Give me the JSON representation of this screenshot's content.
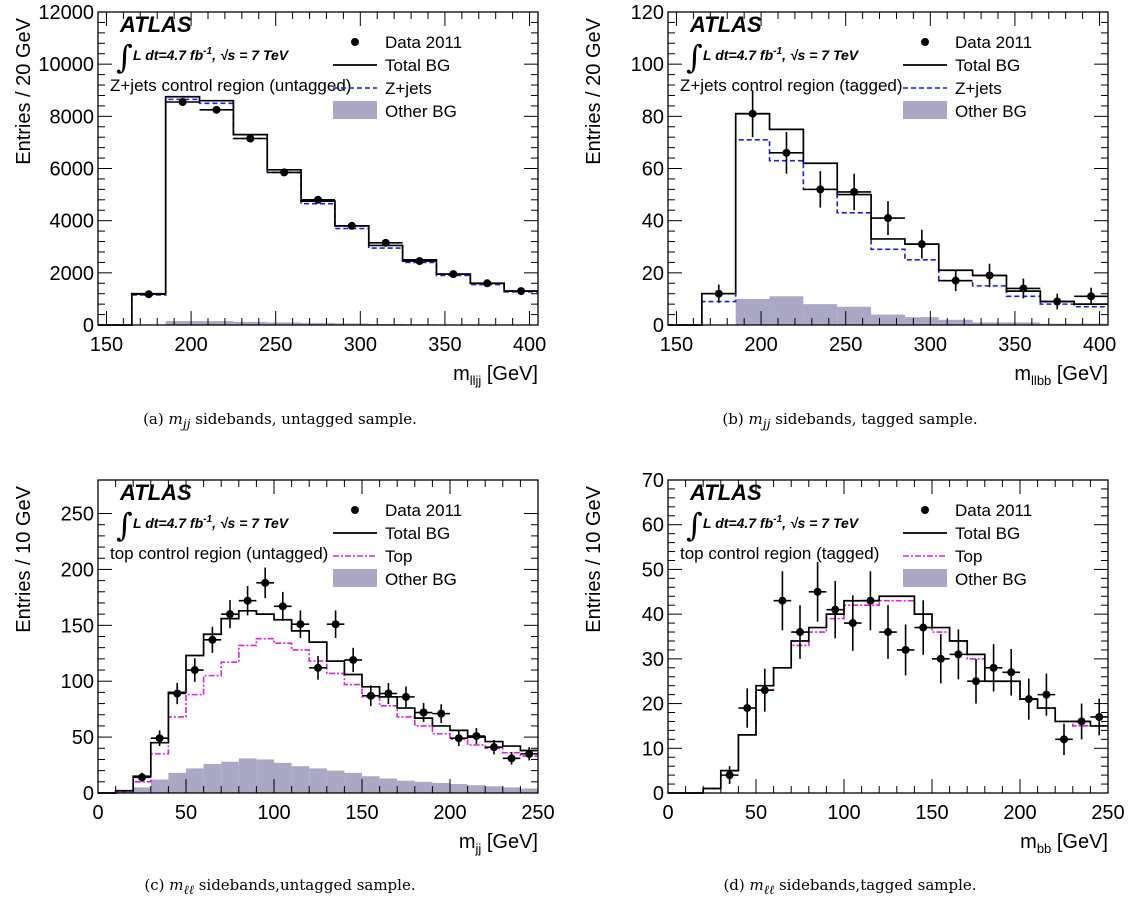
{
  "figure": {
    "panels": [
      {
        "id": "a",
        "caption_prefix": "(a)",
        "caption_var": "m",
        "caption_sub": "jj",
        "caption_text": " sidebands, untagged sample."
      },
      {
        "id": "b",
        "caption_prefix": "(b)",
        "caption_var": "m",
        "caption_sub": "jj",
        "caption_text": " sidebands, tagged sample."
      },
      {
        "id": "c",
        "caption_prefix": "(c)",
        "caption_var": "m",
        "caption_sub": "ℓℓ",
        "caption_text": " sidebands,untagged sample."
      },
      {
        "id": "d",
        "caption_prefix": "(d)",
        "caption_var": "m",
        "caption_sub": "ℓℓ",
        "caption_text": " sidebands,tagged sample."
      }
    ]
  },
  "colors": {
    "data": "#000000",
    "total_bg": "#000000",
    "zjets": "#1a1aee",
    "top": "#e020e0",
    "other_bg": "#aaa8c4"
  },
  "chart_data": [
    {
      "type": "histogram",
      "ylabel": "Entries / 20 GeV",
      "xlabel_main": "m",
      "xlabel_sub": "lljj",
      "xlabel_unit": " [GeV]",
      "xlim": [
        145,
        405
      ],
      "ylim": [
        0,
        12000
      ],
      "xticks": [
        150,
        200,
        250,
        300,
        350,
        400
      ],
      "yticks": [
        0,
        2000,
        4000,
        6000,
        8000,
        10000,
        12000
      ],
      "atlas": "ATLAS",
      "lumi": "L dt=4.7 fb",
      "lumi_sup": "-1",
      "energy": ", √s = 7 TeV",
      "region": "Z+jets control region (untagged)",
      "legend": [
        {
          "key": "data",
          "label": "Data 2011"
        },
        {
          "key": "total",
          "label": "Total BG"
        },
        {
          "key": "zjets",
          "label": "Z+jets"
        },
        {
          "key": "other",
          "label": "Other BG"
        }
      ],
      "bin_edges": [
        145,
        165,
        185,
        205,
        225,
        245,
        265,
        285,
        305,
        325,
        345,
        365,
        385,
        405
      ],
      "total_bg": [
        0,
        1200,
        8750,
        8600,
        7300,
        5950,
        4750,
        3800,
        3050,
        2500,
        1950,
        1600,
        1300
      ],
      "zjets": [
        0,
        1150,
        8650,
        8500,
        7150,
        5850,
        4650,
        3700,
        2950,
        2400,
        1900,
        1550,
        1270
      ],
      "second_bg_label": "Z+jets",
      "other_bg": [
        0,
        0,
        150,
        150,
        120,
        100,
        80,
        60,
        40,
        30,
        20,
        15,
        10
      ],
      "data": {
        "x": [
          175,
          195,
          215,
          235,
          255,
          275,
          295,
          315,
          335,
          355,
          375,
          395
        ],
        "y": [
          1180,
          8550,
          8250,
          7150,
          5850,
          4800,
          3800,
          3150,
          2450,
          1950,
          1600,
          1300
        ],
        "yerr": [
          35,
          90,
          90,
          85,
          75,
          70,
          60,
          55,
          50,
          45,
          40,
          35
        ]
      }
    },
    {
      "type": "histogram",
      "ylabel": "Entries / 20 GeV",
      "xlabel_main": "m",
      "xlabel_sub": "llbb",
      "xlabel_unit": " [GeV]",
      "xlim": [
        145,
        405
      ],
      "ylim": [
        0,
        120
      ],
      "xticks": [
        150,
        200,
        250,
        300,
        350,
        400
      ],
      "yticks": [
        0,
        20,
        40,
        60,
        80,
        100,
        120
      ],
      "atlas": "ATLAS",
      "lumi": "L dt=4.7 fb",
      "lumi_sup": "-1",
      "energy": ", √s = 7 TeV",
      "region": "Z+jets control region (tagged)",
      "legend": [
        {
          "key": "data",
          "label": "Data 2011"
        },
        {
          "key": "total",
          "label": "Total BG"
        },
        {
          "key": "zjets",
          "label": "Z+jets"
        },
        {
          "key": "other",
          "label": "Other BG"
        }
      ],
      "bin_edges": [
        145,
        165,
        185,
        205,
        225,
        245,
        265,
        285,
        305,
        325,
        345,
        365,
        385,
        405
      ],
      "total_bg": [
        0,
        12,
        81,
        75,
        62,
        50,
        33,
        31,
        21,
        19,
        13,
        9,
        8
      ],
      "zjets": [
        0,
        9,
        71,
        63,
        52,
        43,
        29,
        25,
        17,
        15,
        11,
        8,
        7
      ],
      "second_bg_label": "Z+jets",
      "other_bg": [
        0,
        0,
        10,
        11,
        8,
        7,
        4,
        3,
        2,
        1,
        1,
        0.5,
        0.5
      ],
      "data": {
        "x": [
          175,
          195,
          215,
          235,
          255,
          275,
          295,
          315,
          335,
          355,
          375,
          395
        ],
        "y": [
          12,
          81,
          66,
          52,
          51,
          41,
          31,
          17,
          19,
          14,
          9,
          11
        ],
        "yerr": [
          3.5,
          9,
          8,
          7,
          7,
          6.5,
          5.5,
          4,
          4.5,
          3.8,
          3,
          3.3
        ]
      }
    },
    {
      "type": "histogram",
      "ylabel": "Entries / 10 GeV",
      "xlabel_main": "m",
      "xlabel_sub": "jj",
      "xlabel_unit": " [GeV]",
      "xlim": [
        0,
        250
      ],
      "ylim": [
        0,
        280
      ],
      "xticks": [
        0,
        50,
        100,
        150,
        200,
        250
      ],
      "yticks": [
        0,
        50,
        100,
        150,
        200,
        250
      ],
      "atlas": "ATLAS",
      "lumi": "L dt=4.7 fb",
      "lumi_sup": "-1",
      "energy": ", √s = 7 TeV",
      "region": "top control region (untagged)",
      "legend": [
        {
          "key": "data",
          "label": "Data 2011"
        },
        {
          "key": "total",
          "label": "Total BG"
        },
        {
          "key": "top",
          "label": "Top"
        },
        {
          "key": "other",
          "label": "Other BG"
        }
      ],
      "bin_edges": [
        0,
        10,
        20,
        30,
        40,
        50,
        60,
        70,
        80,
        90,
        100,
        110,
        120,
        130,
        140,
        150,
        160,
        170,
        180,
        190,
        200,
        210,
        220,
        230,
        240,
        250
      ],
      "total_bg": [
        0,
        2,
        15,
        45,
        90,
        123,
        142,
        156,
        163,
        160,
        155,
        145,
        135,
        118,
        106,
        95,
        86,
        76,
        67,
        60,
        56,
        50,
        46,
        42,
        38
      ],
      "top": [
        0,
        1,
        10,
        35,
        68,
        88,
        105,
        117,
        132,
        138,
        134,
        128,
        118,
        107,
        97,
        86,
        78,
        68,
        60,
        53,
        48,
        43,
        40,
        36,
        33
      ],
      "second_bg_label": "Top",
      "other_bg": [
        0,
        1,
        5,
        12,
        18,
        22,
        26,
        28,
        31,
        30,
        27,
        24,
        22,
        20,
        18,
        15,
        13,
        11,
        10,
        9,
        8,
        7,
        6,
        5,
        4
      ],
      "data": {
        "x": [
          25,
          35,
          45,
          55,
          65,
          75,
          85,
          95,
          105,
          115,
          125,
          135,
          145,
          155,
          165,
          175,
          185,
          195,
          205,
          215,
          225,
          235,
          245
        ],
        "y": [
          14,
          49,
          89,
          110,
          137,
          160,
          172,
          188,
          167,
          151,
          112,
          151,
          119,
          87,
          89,
          86,
          72,
          71,
          49,
          51,
          41,
          31,
          35
        ],
        "yerr": [
          4,
          7,
          9.5,
          10.5,
          11.7,
          12.6,
          13.1,
          13.7,
          12.9,
          12.3,
          10.6,
          12.3,
          10.9,
          9.3,
          9.4,
          9.3,
          8.5,
          8.4,
          7,
          7.1,
          6.4,
          5.6,
          5.9
        ]
      }
    },
    {
      "type": "histogram",
      "ylabel": "Entries / 10 GeV",
      "xlabel_main": "m",
      "xlabel_sub": "bb",
      "xlabel_unit": " [GeV]",
      "xlim": [
        0,
        250
      ],
      "ylim": [
        0,
        70
      ],
      "xticks": [
        0,
        50,
        100,
        150,
        200,
        250
      ],
      "yticks": [
        0,
        10,
        20,
        30,
        40,
        50,
        60,
        70
      ],
      "atlas": "ATLAS",
      "lumi": "L dt=4.7 fb",
      "lumi_sup": "-1",
      "energy": ", √s = 7 TeV",
      "region": "top control region (tagged)",
      "legend": [
        {
          "key": "data",
          "label": "Data 2011"
        },
        {
          "key": "total",
          "label": "Total BG"
        },
        {
          "key": "top",
          "label": "Top"
        },
        {
          "key": "other",
          "label": "Other BG"
        }
      ],
      "bin_edges": [
        0,
        10,
        20,
        30,
        40,
        50,
        60,
        70,
        80,
        90,
        100,
        110,
        120,
        130,
        140,
        150,
        160,
        170,
        180,
        190,
        200,
        210,
        220,
        230,
        240,
        250
      ],
      "total_bg": [
        0,
        0,
        1,
        5,
        13,
        24,
        28,
        34,
        37,
        40,
        43,
        43,
        44,
        44,
        40,
        37,
        34,
        31,
        25,
        25,
        21,
        19,
        16,
        16,
        15
      ],
      "top": [
        0,
        0,
        1,
        5,
        13,
        23,
        28,
        33,
        36,
        39,
        42,
        42,
        43,
        43,
        40,
        36,
        34,
        30,
        25,
        25,
        21,
        19,
        16,
        15,
        15
      ],
      "second_bg_label": "Top",
      "other_bg": [
        0,
        0,
        0,
        0,
        0,
        0,
        0,
        0,
        0,
        0,
        0,
        0,
        0,
        0,
        0,
        0,
        0,
        0,
        0,
        0,
        0,
        0,
        0,
        0,
        0
      ],
      "data": {
        "x": [
          35,
          45,
          55,
          65,
          75,
          85,
          95,
          105,
          115,
          125,
          135,
          145,
          155,
          165,
          175,
          185,
          195,
          205,
          215,
          225,
          235,
          245
        ],
        "y": [
          4,
          19,
          23,
          43,
          36,
          45,
          41,
          38,
          43,
          36,
          32,
          37,
          30,
          31,
          25,
          28,
          27,
          21,
          22,
          12,
          16,
          17
        ],
        "yerr": [
          2,
          4.4,
          4.8,
          6.6,
          6,
          6.7,
          6.4,
          6.2,
          6.6,
          6,
          5.7,
          6.1,
          5.5,
          5.6,
          5,
          5.3,
          5.2,
          4.6,
          4.7,
          3.5,
          4,
          4.1
        ]
      }
    }
  ]
}
